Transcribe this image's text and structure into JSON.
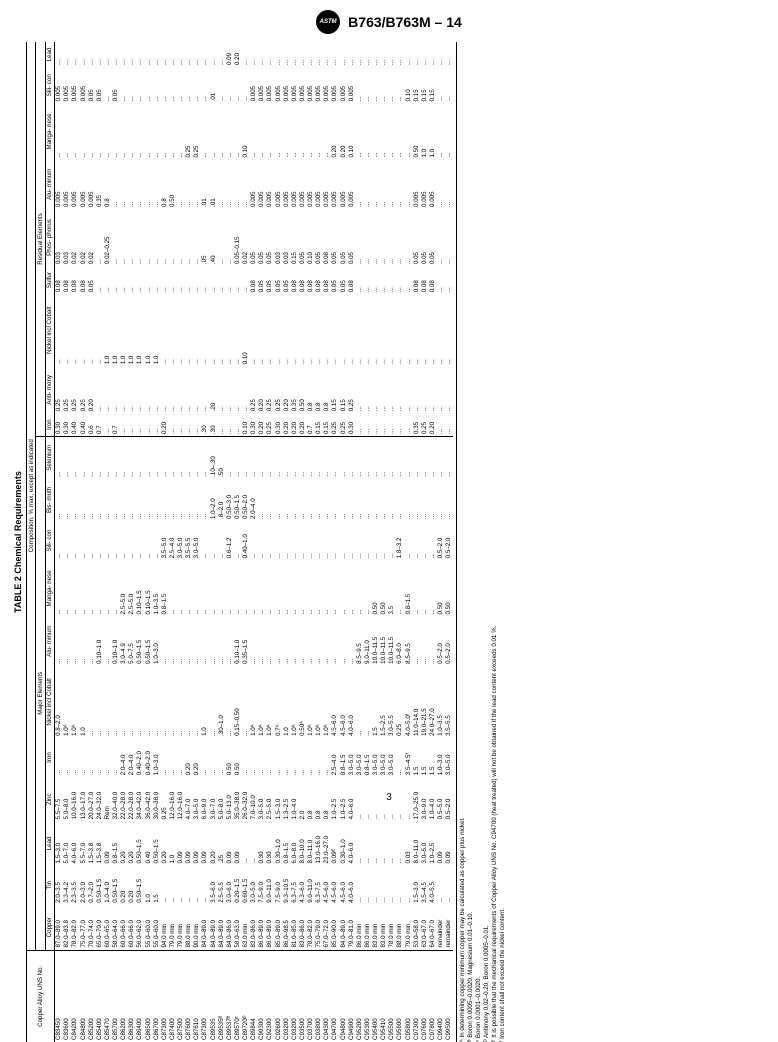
{
  "doc_id": "B763/B763M – 14",
  "table_title": "TABLE 2 Chemical Requirements",
  "subtitle": "Composition, % max, except as indicated",
  "section_major": "Major Elements",
  "section_residual": "Residual Elements",
  "columns": {
    "alloy": "Copper\nAlloy UNS\nNo.",
    "copper": "Copper",
    "tin": "Tin",
    "lead": "Lead",
    "zinc": "Zinc",
    "iron": "Iron",
    "nickel": "Nickel\nincl\nCobalt",
    "alum": "Alu-\nminum",
    "manga": "Manga-\nnese",
    "sili": "Sili-\ncon",
    "bis": "Bis-\nmuth",
    "sel": "Selenium",
    "r_iron": "Iron",
    "r_anti": "Anti-\nmony",
    "r_nickel": "Nickel\nincl\nCobalt",
    "r_sulfur": "Sulfur",
    "r_phos": "Phos-\nphorus",
    "r_alum": "Alu-\nminum",
    "r_manga": "Manga-\nnese",
    "r_sili": "Sili-\ncon",
    "r_lead": "Lead"
  },
  "rows": [
    [
      "C83450",
      "87.0–89.0",
      "2.0–3.5",
      "1.5–3.0",
      "5.5–7.5",
      "...",
      "0.8–2.0",
      "...",
      "...",
      "...",
      "...",
      "...",
      "0.30",
      "0.25",
      "...",
      "0.08",
      "0.03",
      "0.005",
      "...",
      "0.005",
      "..."
    ],
    [
      "C83600",
      "82.0–83.8",
      "3.3–4.2",
      "5.0–7.0",
      "5.0–8.0",
      "...",
      "1.0ᴬ",
      "...",
      "...",
      "...",
      "...",
      "...",
      "0.30",
      "0.25",
      "...",
      "0.08",
      "0.03",
      "0.005",
      "...",
      "0.005",
      "..."
    ],
    [
      "C84200",
      "78.0–82.0",
      "2.3–3.5",
      "4.0–6.0",
      "10.0–16.0",
      "...",
      "1.0ᴬ",
      "...",
      "...",
      "...",
      "...",
      "...",
      "0.40",
      "0.25",
      "...",
      "0.08",
      "0.02",
      "0.005",
      "...",
      "0.005",
      "..."
    ],
    [
      "C84800",
      "75.0–77.0",
      "2.0–3.0",
      "5.5–7.0",
      "13.0–17.0",
      "...",
      "1.0",
      "...",
      "...",
      "...",
      "...",
      "...",
      "0.40",
      "0.25",
      "...",
      "0.08",
      "0.02",
      "0.005",
      "...",
      "0.005",
      "..."
    ],
    [
      "C85200",
      "70.0–74.0",
      "0.7–2.0",
      "1.5–3.8",
      "20.0–27.0",
      "...",
      "...",
      "...",
      "...",
      "...",
      "...",
      "...",
      "0.6",
      "0.20",
      "...",
      "0.05",
      "0.02",
      "0.005",
      "...",
      "0.05",
      "..."
    ],
    [
      "C85400",
      "65.0–70.0",
      "0.50–1.5",
      "1.5–3.8",
      "24.0–32.0",
      "...",
      "...",
      "0.10–1.0",
      "...",
      "...",
      "...",
      "...",
      "0.7",
      "...",
      "...",
      "...",
      "...",
      "0.35",
      "...",
      "0.05",
      "..."
    ],
    [
      "C85470",
      "60.0–65.0",
      "1.0–4.0",
      "0.09",
      "Rem",
      "...",
      "...",
      "...",
      "...",
      "...",
      "...",
      "...",
      "...",
      "...",
      "1.0",
      "...",
      "0.02–0.25",
      "0.8",
      "...",
      "...",
      "..."
    ],
    [
      "C85700",
      "58.0–64.0",
      "0.50–1.5",
      "0.8–1.5",
      "32.0–40.0",
      "...",
      "...",
      "0.10–1.0",
      "...",
      "...",
      "...",
      "...",
      "0.7",
      "...",
      "1.0",
      "...",
      "...",
      "...",
      "...",
      "0.05",
      "..."
    ],
    [
      "C86200",
      "60.0–66.0",
      "0.20",
      "0.20",
      "22.0–28.0",
      "2.0–4.0",
      "...",
      "3.0–4.9",
      "2.5–5.0",
      "...",
      "...",
      "...",
      "...",
      "...",
      "1.0",
      "...",
      "...",
      "...",
      "...",
      "...",
      "..."
    ],
    [
      "C86300",
      "60.0–66.0",
      "0.20",
      "0.20",
      "22.0–28.0",
      "2.0–4.0",
      "...",
      "5.0–7.5",
      "2.5–5.0",
      "...",
      "...",
      "...",
      "...",
      "...",
      "1.0",
      "...",
      "...",
      "...",
      "...",
      "...",
      "..."
    ],
    [
      "C86400",
      "56.0–62.0",
      "0.50–1.5",
      "0.50–1.5",
      "34.0–42.0",
      "0.40–2.0",
      "...",
      "0.50–1.5",
      "0.10–1.5",
      "...",
      "...",
      "...",
      "...",
      "...",
      "1.0",
      "...",
      "...",
      "...",
      "...",
      "...",
      "..."
    ],
    [
      "C86500",
      "55.0–60.0",
      "1.0",
      "0.40",
      "36.0–42.0",
      "0.40–2.0",
      "...",
      "0.50–1.5",
      "0.10–1.5",
      "...",
      "...",
      "...",
      "...",
      "...",
      "1.0",
      "...",
      "...",
      "...",
      "...",
      "...",
      "..."
    ],
    [
      "C86700",
      "55.0–60.0",
      "1.5",
      "0.50–1.5",
      "30.0–38.0",
      "1.0–3.0",
      "...",
      "1.0–3.0",
      "1.0–3.5",
      "...",
      "...",
      "...",
      "...",
      "...",
      "1.0",
      "...",
      "...",
      "...",
      "...",
      "...",
      "..."
    ],
    [
      "C87300",
      "94.0 min",
      "...",
      "0.20",
      "0.25",
      "...",
      "...",
      "...",
      "0.8–1.5",
      "3.5–5.0",
      "...",
      "...",
      "0.20",
      "...",
      "...",
      "...",
      "...",
      "0.8",
      "...",
      "...",
      "..."
    ],
    [
      "C87400",
      "79.0 min",
      "...",
      "1.0",
      "12.0–16.0",
      "...",
      "...",
      "...",
      "...",
      "2.5–4.0",
      "...",
      "...",
      "...",
      "...",
      "...",
      "...",
      "...",
      "0.50",
      "...",
      "...",
      "..."
    ],
    [
      "C87500",
      "79.0 min",
      "...",
      "0.09",
      "12.0–16.0",
      "...",
      "...",
      "...",
      "...",
      "3.0–5.0",
      "...",
      "...",
      "...",
      "...",
      "...",
      "...",
      "...",
      "...",
      "...",
      "...",
      "..."
    ],
    [
      "C87600",
      "88.0 min",
      "...",
      "0.09",
      "4.0–7.0",
      "0.20",
      "...",
      "...",
      "...",
      "3.5–5.5",
      "...",
      "...",
      "...",
      "...",
      "...",
      "...",
      "...",
      "...",
      "0.25",
      "...",
      "..."
    ],
    [
      "C87610",
      "90.0 min",
      "...",
      "0.09",
      "3.0–5.0",
      "0.20",
      "...",
      "...",
      "...",
      "3.0–5.0",
      "...",
      "...",
      "...",
      "...",
      "...",
      "...",
      "...",
      "...",
      "0.25",
      "...",
      "..."
    ],
    [
      "C87300",
      "84.0–89.0",
      "...",
      "0.09",
      "6.0–9.0",
      "...",
      "1.0",
      "...",
      "...",
      "...",
      "...",
      "...",
      ".30",
      "...",
      "...",
      "...",
      ".05",
      ".01",
      "...",
      "...",
      "..."
    ],
    [
      "C89535",
      "84.0–89.0",
      "3.5–6.0",
      "0.20",
      "3.0–7.0",
      "...",
      "...",
      "...",
      "...",
      "...",
      "1.0–2.0",
      ".10–.30",
      ".30",
      ".20",
      "...",
      "...",
      ".40",
      ".01",
      "...",
      ".01",
      "..."
    ],
    [
      "C89535ᴮ",
      "84.0–89.0",
      "2.5–5.5",
      ".25",
      "5.0–8.0",
      "...",
      ".30–1.0",
      "...",
      "...",
      "...",
      ".8–2.0",
      ".50",
      "...",
      "...",
      "...",
      "...",
      "...",
      "...",
      "...",
      "...",
      "..."
    ],
    [
      "C89537ᴮ",
      "84.0–86.0",
      "3.0–6.0",
      "0.09",
      "5.0–13.0",
      "0.50",
      "...",
      "...",
      "...",
      "0.6–1.2",
      "0.50–3.0",
      "...",
      "...",
      "...",
      "...",
      "...",
      "...",
      "...",
      "...",
      "...",
      "0.09"
    ],
    [
      "C89570ᶜ",
      "58.0–63.0",
      "0.20–1.5",
      "0.09",
      "35.0–38.0",
      "0.50",
      "0.15–0.50",
      "0.10–1.0",
      "...",
      "...",
      "0.50–1.5",
      "...",
      "...",
      "...",
      "...",
      "...",
      "0.05–0.15",
      "...",
      "...",
      "...",
      "0.20"
    ],
    [
      "C89720ᴰ",
      "63.0 min",
      "0.60–1.5",
      "...",
      "26.0–32.0",
      "...",
      "...",
      "0.35–1.5",
      "...",
      "0.40–1.0",
      "0.50–2.0",
      "...",
      "0.10",
      "...",
      "0.10",
      "...",
      "0.02",
      "...",
      "0.10",
      "...",
      "..."
    ],
    [
      "C89844",
      "83.0–86.0",
      "3.0–5.0",
      "...",
      "7.0–10.0",
      "...",
      "1.0ᴬ",
      "...",
      "...",
      "...",
      "2.0–4.0",
      "...",
      "0.30",
      "0.25",
      "...",
      "0.08",
      "0.05",
      "0.005",
      "...",
      "0.005",
      "..."
    ],
    [
      "C90300",
      "86.0–89.0",
      "7.5–9.0",
      "0.30",
      "3.0–5.0",
      "...",
      "1.0ᴬ",
      "...",
      "...",
      "...",
      "...",
      "...",
      "0.20",
      "0.20",
      "...",
      "0.05",
      "0.05",
      "0.005",
      "...",
      "0.005",
      "..."
    ],
    [
      "C92300",
      "86.0–89.0",
      "9.0–11.0",
      "0.30",
      "2.5–5.0",
      "...",
      "1.0ᴬ",
      "...",
      "...",
      "...",
      "...",
      "...",
      "0.25",
      "0.25",
      "...",
      "0.05",
      "0.05",
      "0.005",
      "...",
      "0.005",
      "..."
    ],
    [
      "C92600",
      "85.0–89.0",
      "7.5–9.0",
      "0.30–1.0",
      "1.5–3.0",
      "...",
      "0.7ᴬ",
      "...",
      "...",
      "...",
      "...",
      "...",
      "0.30",
      "0.25",
      "...",
      "0.05",
      "0.03",
      "0.005",
      "...",
      "0.005",
      "..."
    ],
    [
      "C93200",
      "86.0–98.5",
      "9.3–10.5",
      "0.8–1.5",
      "1.3–2.5",
      "...",
      "1.0",
      "...",
      "...",
      "...",
      "...",
      "...",
      "0.20",
      "0.20",
      "...",
      "0.05",
      "0.03",
      "0.005",
      "...",
      "0.005",
      "..."
    ],
    [
      "C93200",
      "81.0–85.0",
      "6.3–7.5",
      "6.0–8.0",
      "1.0–4.0",
      "...",
      "1.0ᴬ",
      "...",
      "...",
      "...",
      "...",
      "...",
      "0.20",
      "0.35",
      "...",
      "0.08",
      "0.15",
      "0.005",
      "...",
      "0.005",
      "..."
    ],
    [
      "C93500",
      "83.0–86.0",
      "4.3–6.0",
      "8.0–10.0",
      "2.0",
      "...",
      "0.50ᴬ",
      "...",
      "...",
      "...",
      "...",
      "...",
      "0.20",
      "0.50",
      "...",
      "0.08",
      "0.05",
      "0.005",
      "...",
      "0.005",
      "..."
    ],
    [
      "C93700",
      "78.0–82.0",
      "9.0–11.0",
      "8.0–11.0",
      "0.8",
      "...",
      "1.0ᴬ",
      "...",
      "...",
      "...",
      "...",
      "...",
      "0.7",
      "0.8",
      "...",
      "0.08",
      "0.10",
      "0.005",
      "...",
      "0.005",
      "..."
    ],
    [
      "C93800",
      "75.0–79.0",
      "6.3–7.5",
      "13.0–16.0",
      "0.8",
      "...",
      "1.0ᴬ",
      "...",
      "...",
      "...",
      "...",
      "...",
      "0.15",
      "0.8",
      "...",
      "0.08",
      "0.05",
      "0.005",
      "...",
      "0.005",
      "..."
    ],
    [
      "C94300",
      "67.0–72.0",
      "4.5–6.0",
      "23.0–27.0",
      "0.8",
      "...",
      "1.0ᴬ",
      "...",
      "...",
      "...",
      "...",
      "...",
      "0.15",
      "0.8",
      "...",
      "0.08",
      "0.08",
      "0.005",
      "...",
      "0.005",
      "..."
    ],
    [
      "C94700",
      "85.0–90.0",
      "4.5–6.0",
      "0.09ᴱ",
      "1.0–2.5",
      "2.5–4.0",
      "4.5–6.0",
      "...",
      "...",
      "...",
      "...",
      "...",
      "0.25",
      "0.15",
      "...",
      "0.05",
      "0.05",
      "0.005",
      "0.20",
      "0.005",
      "..."
    ],
    [
      "C94800",
      "84.0–89.0",
      "4.5–6.0",
      "0.30–1.0",
      "1.0–2.5",
      "0.8–1.5",
      "4.5–6.0",
      "...",
      "...",
      "...",
      "...",
      "...",
      "0.25",
      "0.15",
      "...",
      "0.05",
      "0.05",
      "0.005",
      "0.20",
      "0.005",
      "..."
    ],
    [
      "C94900",
      "79.0–81.0",
      "4.0–6.0",
      "4.0–6.0",
      "4.0–6.0",
      "3.0–5.0",
      "4.0–6.0",
      "...",
      "...",
      "...",
      "...",
      "...",
      "0.30",
      "0.25",
      "...",
      "0.08",
      "0.05",
      "0.005",
      "0.10",
      "0.005",
      "..."
    ],
    [
      "C95200",
      "86.0 min",
      "...",
      "...",
      "...",
      "3.0–5.0",
      "...",
      "8.5–9.5",
      "...",
      "...",
      "...",
      "...",
      "...",
      "...",
      "...",
      "...",
      "...",
      "...",
      "...",
      "...",
      "..."
    ],
    [
      "C95300",
      "86.0 min",
      "...",
      "...",
      "...",
      "0.8–1.5",
      "...",
      "9.0–11.0",
      "...",
      "...",
      "...",
      "...",
      "...",
      "...",
      "...",
      "...",
      "...",
      "...",
      "...",
      "...",
      "..."
    ],
    [
      "C95400",
      "83.0 min",
      "...",
      "...",
      "...",
      "3.0–5.0",
      "1.5",
      "10.0–11.5",
      "0.50",
      "...",
      "...",
      "...",
      "...",
      "...",
      "...",
      "...",
      "...",
      "...",
      "...",
      "...",
      "..."
    ],
    [
      "C95410",
      "83.0 min",
      "...",
      "...",
      "...",
      "3.0–5.0",
      "1.5–2.5",
      "10.0–11.5",
      "0.50",
      "...",
      "...",
      "...",
      "...",
      "...",
      "...",
      "...",
      "...",
      "...",
      "...",
      "...",
      "..."
    ],
    [
      "C95500",
      "78.0 min",
      "...",
      "...",
      "...",
      "3.0–5.0",
      "3.0–5.5",
      "10.0–11.5",
      "3.5",
      "...",
      "...",
      "...",
      "...",
      "...",
      "...",
      "...",
      "...",
      "...",
      "...",
      "...",
      "..."
    ],
    [
      "C95600",
      "88.0 min",
      "...",
      "...",
      "...",
      "...",
      "0.25",
      "6.0–8.0",
      "...",
      "1.8–3.2",
      "...",
      "...",
      "...",
      "...",
      "...",
      "...",
      "...",
      "...",
      "...",
      "...",
      "..."
    ],
    [
      "C95800",
      "79.0 min",
      "...",
      "0.03",
      "...",
      "3.5–4.5ᶠ",
      "4.0–5.0ᶠ",
      "8.5–9.5",
      "0.8–1.5",
      "...",
      "...",
      "...",
      "...",
      "...",
      "...",
      "...",
      "...",
      "...",
      "...",
      "0.10",
      "..."
    ],
    [
      "C97300",
      "53.0–58.0",
      "1.5–3.0",
      "8.0–11.0",
      "17.0–25.0",
      "1.5",
      "11.0–14.0",
      "...",
      "...",
      "...",
      "...",
      "...",
      "0.35",
      "...",
      "...",
      "0.08",
      "0.05",
      "0.005",
      "0.50",
      "0.15",
      "..."
    ],
    [
      "C97600",
      "63.0–67.0",
      "3.5–4.5",
      "3.0–5.0",
      "3.0–9.0",
      "1.5",
      "19.0–21.5",
      "...",
      "...",
      "...",
      "...",
      "...",
      "0.25",
      "...",
      "...",
      "0.08",
      "0.05",
      "0.005",
      "1.0",
      "0.15",
      "..."
    ],
    [
      "C97800",
      "64.0–67.0",
      "4.0–5.5",
      "1.0–2.5",
      "1.0–4.0",
      "1.5",
      "24.0–27.0",
      "...",
      "...",
      "...",
      "...",
      "...",
      "0.20",
      "...",
      "...",
      "0.08",
      "0.05",
      "0.005",
      "1.0",
      "0.15",
      "..."
    ],
    [
      "C99400",
      "remainder",
      "...",
      "0.09",
      "0.5–5.0",
      "1.0–3.0",
      "1.0–3.5",
      "0.5–2.0",
      "0.50",
      "0.5–2.0",
      "...",
      "...",
      "...",
      "...",
      "...",
      "...",
      "...",
      "...",
      "...",
      "...",
      "..."
    ],
    [
      "C99500",
      "remainder",
      "...",
      "0.09",
      "0.5–2.0",
      "3.0–5.0",
      "3.5–5.5",
      "0.5–2.0",
      "0.50",
      "0.5–2.0",
      "...",
      "...",
      "...",
      "...",
      "...",
      "...",
      "...",
      "...",
      "...",
      "...",
      "..."
    ]
  ],
  "notes": [
    "ᴬ In determining copper minimum copper may be calculated as copper plus nickel.",
    "ᴮ Boron 0.0005–0.0020, Magnesium 0.01–0.10.",
    "ᶜ Boron 0.0001–0.0020.",
    "ᴰ Antimony 0.02–0.20, Boron 0.0005–0.01.",
    "ᴱ It is possible that the mechanical requirements of Copper Alloy UNS No. C94700 (heat treated) will not be obtained if the lead content exceeds 0.01 %.",
    "ᶠ Iron content shall not exceed the nickel content."
  ],
  "page": "3"
}
